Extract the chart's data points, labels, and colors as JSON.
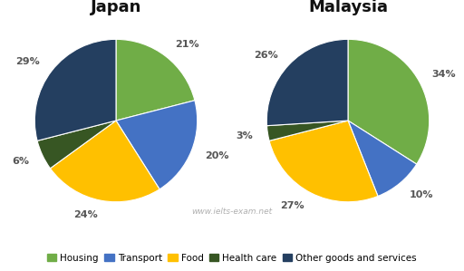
{
  "japan": {
    "title": "Japan",
    "values": [
      21,
      20,
      24,
      6,
      29
    ],
    "labels": [
      "21%",
      "20%",
      "24%",
      "6%",
      "29%"
    ],
    "startangle": 90
  },
  "malaysia": {
    "title": "Malaysia",
    "values": [
      34,
      10,
      27,
      3,
      26
    ],
    "labels": [
      "34%",
      "10%",
      "27%",
      "3%",
      "26%"
    ],
    "startangle": 90
  },
  "colors": [
    "#70ad47",
    "#4472c4",
    "#ffc000",
    "#375623",
    "#243f60"
  ],
  "legend_labels": [
    "Housing",
    "Transport",
    "Food",
    "Health care",
    "Other goods and services"
  ],
  "watermark": "www.ielts-exam.net",
  "title_fontsize": 13,
  "label_fontsize": 8,
  "legend_fontsize": 8,
  "background_color": "#ffffff"
}
